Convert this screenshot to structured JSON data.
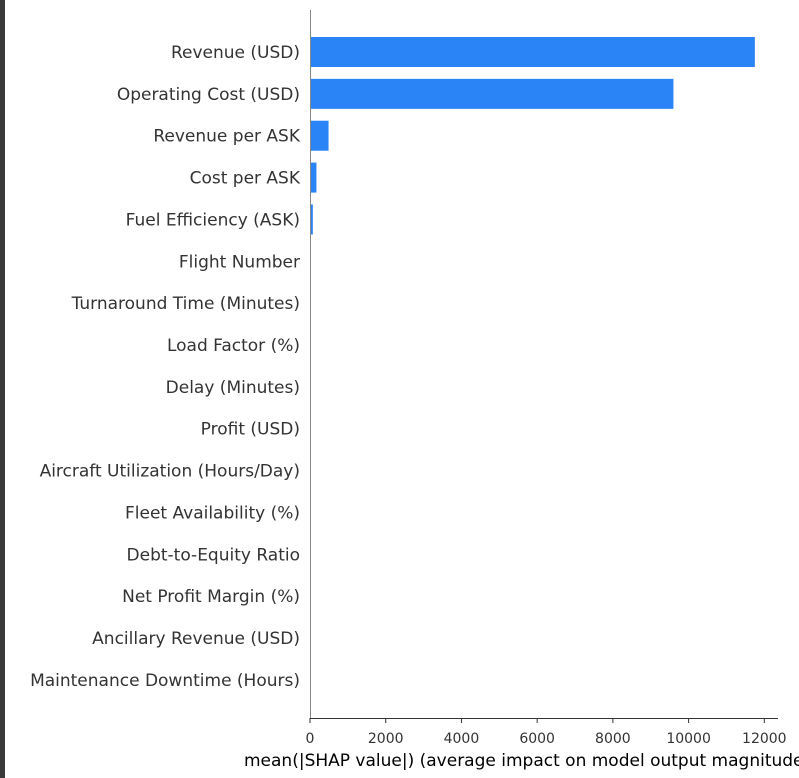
{
  "chart_data": {
    "type": "bar",
    "orientation": "horizontal",
    "categories": [
      "Revenue (USD)",
      "Operating Cost (USD)",
      "Revenue per ASK",
      "Cost per ASK",
      "Fuel Efficiency (ASK)",
      "Flight Number",
      "Turnaround Time (Minutes)",
      "Load Factor (%)",
      "Delay (Minutes)",
      "Profit (USD)",
      "Aircraft Utilization (Hours/Day)",
      "Fleet Availability (%)",
      "Debt-to-Equity Ratio",
      "Net Profit Margin (%)",
      "Ancillary Revenue (USD)",
      "Maintenance Downtime (Hours)"
    ],
    "values": [
      11750,
      9600,
      490,
      170,
      75,
      0,
      0,
      0,
      0,
      0,
      0,
      0,
      0,
      0,
      0,
      0
    ],
    "xlim": [
      0,
      12300
    ],
    "xticks": [
      0,
      2000,
      4000,
      6000,
      8000,
      10000,
      12000
    ],
    "xtick_labels": [
      "0",
      "2000",
      "4000",
      "6000",
      "8000",
      "10000",
      "12000"
    ],
    "xlabel": "mean(|SHAP value|) (average impact on model output magnitude)",
    "ylabel": "",
    "title": "",
    "grid": false,
    "bar_color": "#2b84f5"
  }
}
